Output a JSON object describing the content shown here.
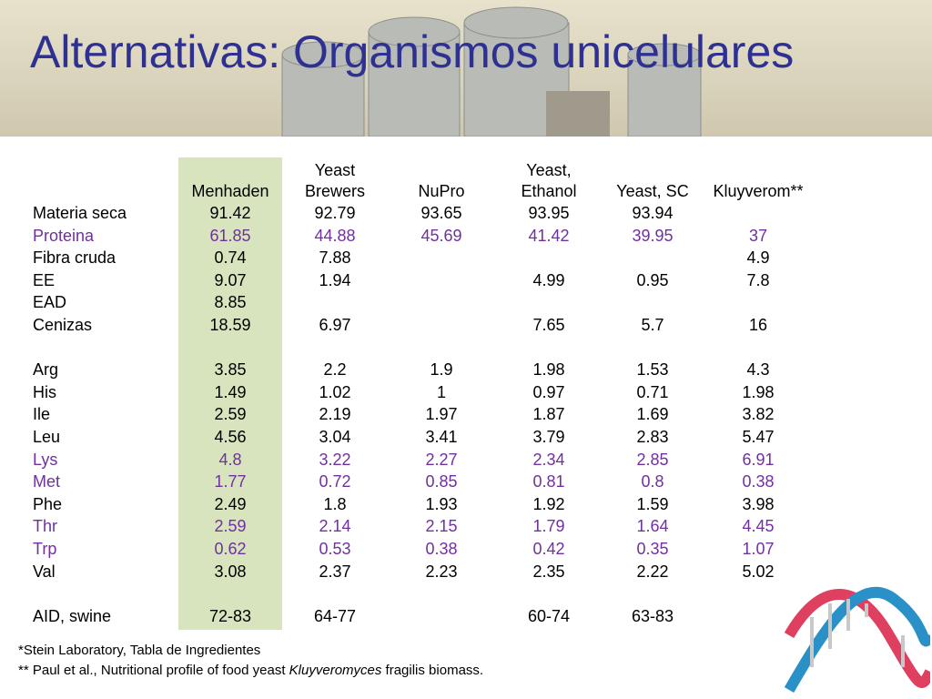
{
  "title": "Alternativas: Organismos unicelulares",
  "table": {
    "columns": [
      [
        "Menhaden"
      ],
      [
        "Yeast",
        "Brewers"
      ],
      [
        "NuPro"
      ],
      [
        "Yeast,",
        "Ethanol"
      ],
      [
        "Yeast, SC"
      ],
      [
        "Kluyverom**"
      ]
    ],
    "rows": [
      {
        "label": "Materia seca",
        "highlight": false,
        "cells": [
          "91.42",
          "92.79",
          "93.65",
          "93.95",
          "93.94",
          null
        ]
      },
      {
        "label": "Proteina",
        "highlight": true,
        "cells": [
          "61.85",
          "44.88",
          "45.69",
          "41.42",
          "39.95",
          "37"
        ]
      },
      {
        "label": "Fibra cruda",
        "highlight": false,
        "cells": [
          "0.74",
          "7.88",
          null,
          null,
          null,
          "4.9"
        ]
      },
      {
        "label": "EE",
        "highlight": false,
        "cells": [
          "9.07",
          "1.94",
          null,
          "4.99",
          "0.95",
          "7.8"
        ]
      },
      {
        "label": "EAD",
        "highlight": false,
        "cells": [
          "8.85",
          null,
          null,
          null,
          null,
          null
        ]
      },
      {
        "label": "Cenizas",
        "highlight": false,
        "cells": [
          "18.59",
          "6.97",
          null,
          "7.65",
          "5.7",
          "16"
        ]
      },
      null,
      {
        "label": "Arg",
        "highlight": false,
        "cells": [
          "3.85",
          "2.2",
          "1.9",
          "1.98",
          "1.53",
          "4.3"
        ]
      },
      {
        "label": "His",
        "highlight": false,
        "cells": [
          "1.49",
          "1.02",
          "1",
          "0.97",
          "0.71",
          "1.98"
        ]
      },
      {
        "label": "Ile",
        "highlight": false,
        "cells": [
          "2.59",
          "2.19",
          "1.97",
          "1.87",
          "1.69",
          "3.82"
        ]
      },
      {
        "label": "Leu",
        "highlight": false,
        "cells": [
          "4.56",
          "3.04",
          "3.41",
          "3.79",
          "2.83",
          "5.47"
        ]
      },
      {
        "label": "Lys",
        "highlight": true,
        "cells": [
          "4.8",
          "3.22",
          "2.27",
          "2.34",
          "2.85",
          "6.91"
        ]
      },
      {
        "label": "Met",
        "highlight": true,
        "cells": [
          "1.77",
          "0.72",
          "0.85",
          "0.81",
          "0.8",
          "0.38"
        ]
      },
      {
        "label": "Phe",
        "highlight": false,
        "cells": [
          "2.49",
          "1.8",
          "1.93",
          "1.92",
          "1.59",
          "3.98"
        ]
      },
      {
        "label": "Thr",
        "highlight": true,
        "cells": [
          "2.59",
          "2.14",
          "2.15",
          "1.79",
          "1.64",
          "4.45"
        ]
      },
      {
        "label": "Trp",
        "highlight": true,
        "cells": [
          "0.62",
          "0.53",
          "0.38",
          "0.42",
          "0.35",
          "1.07"
        ]
      },
      {
        "label": "Val",
        "highlight": false,
        "cells": [
          "3.08",
          "2.37",
          "2.23",
          "2.35",
          "2.22",
          "5.02"
        ]
      },
      null,
      {
        "label": "AID, swine",
        "highlight": false,
        "cells": [
          "72-83",
          "64-77",
          null,
          "60-74",
          "63-83",
          null
        ]
      }
    ]
  },
  "footnotes": [
    [
      "*Stein Laboratory, Tabla de Ingredientes"
    ],
    [
      "** Paul et al., Nutritional profile of food yeast ",
      "Kluyveromyces",
      " fragilis biomass."
    ]
  ]
}
